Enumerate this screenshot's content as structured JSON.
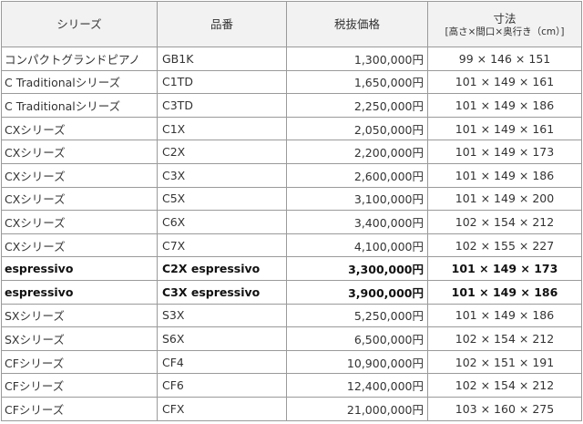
{
  "header": {
    "series": "シリーズ",
    "model": "品番",
    "price": "税抜価格",
    "dimensions": "寸法",
    "dimensions_sub": "[高さ×間口×奥行き（cm）]"
  },
  "rows": [
    {
      "series": "コンパクトグランドピアノ",
      "model": "GB1K",
      "price": "1,300,000円",
      "dims": "99 × 146 × 151",
      "bold": false
    },
    {
      "series": "C Traditionalシリーズ",
      "model": "C1TD",
      "price": "1,650,000円",
      "dims": "101 × 149 × 161",
      "bold": false
    },
    {
      "series": "C Traditionalシリーズ",
      "model": "C3TD",
      "price": "2,250,000円",
      "dims": "101 × 149 × 186",
      "bold": false
    },
    {
      "series": "CXシリーズ",
      "model": "C1X",
      "price": "2,050,000円",
      "dims": "101 × 149 × 161",
      "bold": false
    },
    {
      "series": "CXシリーズ",
      "model": "C2X",
      "price": "2,200,000円",
      "dims": "101 × 149 × 173",
      "bold": false
    },
    {
      "series": "CXシリーズ",
      "model": "C3X",
      "price": "2,600,000円",
      "dims": "101 × 149 × 186",
      "bold": false
    },
    {
      "series": "CXシリーズ",
      "model": "C5X",
      "price": "3,100,000円",
      "dims": "101 × 149 × 200",
      "bold": false
    },
    {
      "series": "CXシリーズ",
      "model": "C6X",
      "price": "3,400,000円",
      "dims": "102 × 154 × 212",
      "bold": false
    },
    {
      "series": "CXシリーズ",
      "model": "C7X",
      "price": "4,100,000円",
      "dims": "102 × 155 × 227",
      "bold": false
    },
    {
      "series": "espressivo",
      "model": "C2X espressivo",
      "price": "3,300,000円",
      "dims": "101 × 149 × 173",
      "bold": true
    },
    {
      "series": "espressivo",
      "model": "C3X espressivo",
      "price": "3,900,000円",
      "dims": "101 × 149 × 186",
      "bold": true
    },
    {
      "series": "SXシリーズ",
      "model": "S3X",
      "price": "5,250,000円",
      "dims": "101 × 149 × 186",
      "bold": false
    },
    {
      "series": "SXシリーズ",
      "model": "S6X",
      "price": "6,500,000円",
      "dims": "102 × 154 × 212",
      "bold": false
    },
    {
      "series": "CFシリーズ",
      "model": "CF4",
      "price": "10,900,000円",
      "dims": "102 × 151 × 191",
      "bold": false
    },
    {
      "series": "CFシリーズ",
      "model": "CF6",
      "price": "12,400,000円",
      "dims": "102 × 154 × 212",
      "bold": false
    },
    {
      "series": "CFシリーズ",
      "model": "CFX",
      "price": "21,000,000円",
      "dims": "103 × 160 × 275",
      "bold": false
    }
  ]
}
